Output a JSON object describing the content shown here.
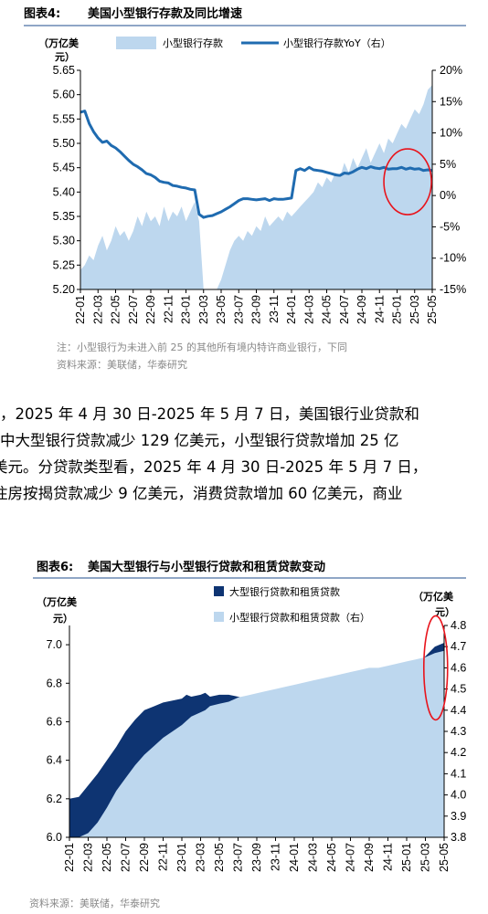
{
  "fig1": {
    "label": "图表4:",
    "title": "美国小型银行存款及同比增速",
    "note": "注：小型银行为未进入前 25 的其他所有境内特许商业银行，下同",
    "source": "资料来源：美联储，华泰研究",
    "colors": {
      "area": "#bdd7ee",
      "line": "#1f6bb0",
      "circle": "#e8141c"
    }
  },
  "fig2": {
    "label": "图表6:",
    "title": "美国大型银行与小型银行贷款和租赁贷款变动",
    "source": "资料来源：美联储，华泰研究",
    "colors": {
      "large": "#0e3472",
      "small": "#bdd7ee",
      "circle": "#e8141c"
    }
  },
  "body_text": [
    "，2025 年 4 月 30 日-2025 年 5 月 7 日，美国银行业贷款和",
    "中大型银行贷款减少 129 亿美元，小型银行贷款增加 25 亿",
    "美元。分贷款类型看，2025 年 4 月 30 日-2025 年 5 月 7 日，",
    "住房按揭贷款减少 9 亿美元，消费贷款增加 60 亿美元，商业"
  ],
  "chart_data": [
    {
      "type": "area",
      "title": "美国小型银行存款及同比增速",
      "y_unit_left": "（万亿美元）",
      "ylim_left": [
        5.2,
        5.65
      ],
      "ylim_right": [
        -15,
        20
      ],
      "y_ticks_left": [
        "5.20",
        "5.25",
        "5.30",
        "5.35",
        "5.40",
        "5.45",
        "5.50",
        "5.55",
        "5.60",
        "5.65"
      ],
      "y_ticks_right": [
        "-15%",
        "-10%",
        "-5%",
        "0%",
        "5%",
        "10%",
        "15%",
        "20%"
      ],
      "x_ticks": [
        "22-01",
        "22-03",
        "22-05",
        "22-07",
        "22-09",
        "22-11",
        "23-01",
        "23-03",
        "23-05",
        "23-07",
        "23-09",
        "23-11",
        "24-01",
        "24-03",
        "24-05",
        "24-07",
        "24-09",
        "24-11",
        "25-01",
        "25-03",
        "25-05"
      ],
      "legend_position": "top",
      "series": [
        {
          "name": "小型银行存款",
          "axis": "left",
          "kind": "area",
          "x": [
            0,
            0.5,
            1,
            1.5,
            2,
            2.5,
            3,
            3.5,
            4,
            4.5,
            5,
            5.5,
            6,
            6.5,
            7,
            7.5,
            8,
            8.5,
            9,
            9.5,
            10,
            10.5,
            11,
            11.5,
            12,
            12.5,
            13,
            13.5,
            14,
            14.5,
            15,
            15.5,
            16,
            16.5,
            17,
            17.5,
            18,
            18.5,
            19,
            19.5,
            20,
            20.5,
            21,
            21.5,
            22,
            22.5,
            23,
            23.5,
            24,
            24.5,
            25,
            25.5,
            26,
            26.5,
            27,
            27.5,
            28,
            28.5,
            29,
            29.5,
            30,
            30.5,
            31,
            31.5,
            32,
            32.5,
            33,
            33.5,
            34,
            34.5,
            35,
            35.5,
            36,
            36.5,
            37,
            37.5,
            38,
            38.5,
            39,
            39.5,
            40
          ],
          "values": [
            5.24,
            5.25,
            5.27,
            5.26,
            5.29,
            5.31,
            5.28,
            5.3,
            5.33,
            5.31,
            5.32,
            5.3,
            5.32,
            5.35,
            5.33,
            5.36,
            5.34,
            5.35,
            5.33,
            5.37,
            5.34,
            5.36,
            5.35,
            5.37,
            5.34,
            5.36,
            5.38,
            5.34,
            5.2,
            5.18,
            5.15,
            5.18,
            5.22,
            5.25,
            5.28,
            5.3,
            5.31,
            5.3,
            5.32,
            5.31,
            5.33,
            5.32,
            5.35,
            5.33,
            5.34,
            5.35,
            5.34,
            5.36,
            5.35,
            5.36,
            5.37,
            5.38,
            5.39,
            5.4,
            5.42,
            5.41,
            5.43,
            5.42,
            5.44,
            5.43,
            5.46,
            5.44,
            5.47,
            5.45,
            5.47,
            5.49,
            5.46,
            5.48,
            5.5,
            5.48,
            5.51,
            5.5,
            5.52,
            5.54,
            5.53,
            5.55,
            5.57,
            5.56,
            5.58,
            5.61,
            5.62
          ]
        },
        {
          "name": "小型银行存款YoY（右）",
          "axis": "right",
          "kind": "line",
          "x": [
            0,
            0.5,
            1,
            1.5,
            2,
            2.5,
            3,
            3.5,
            4,
            4.5,
            5,
            5.5,
            6,
            6.5,
            7,
            7.5,
            8,
            8.5,
            9,
            9.5,
            10,
            10.5,
            11,
            11.5,
            12,
            12.5,
            13,
            13.5,
            14,
            14.5,
            15,
            15.5,
            16,
            16.5,
            17,
            17.5,
            18,
            18.5,
            19,
            19.5,
            20,
            20.5,
            21,
            21.5,
            22,
            22.5,
            23,
            23.5,
            24,
            24.5,
            25,
            25.5,
            26,
            26.5,
            27,
            27.5,
            28,
            28.5,
            29,
            29.5,
            30,
            30.5,
            31,
            31.5,
            32,
            32.5,
            33,
            33.5,
            34,
            34.5,
            35,
            35.5,
            36,
            36.5,
            37,
            37.5,
            38,
            38.5,
            39,
            39.5,
            40
          ],
          "values": [
            13.3,
            13.5,
            11.5,
            10.2,
            9.2,
            8.5,
            8.7,
            8.0,
            7.6,
            7.0,
            6.3,
            5.6,
            5.0,
            4.6,
            4.1,
            3.5,
            3.3,
            2.9,
            2.3,
            2.1,
            2.0,
            1.6,
            1.5,
            1.3,
            1.2,
            1.0,
            0.9,
            -3.0,
            -3.5,
            -3.3,
            -3.2,
            -2.9,
            -2.6,
            -2.2,
            -1.8,
            -1.3,
            -0.8,
            -0.5,
            -0.5,
            -0.6,
            -0.7,
            -0.6,
            -0.5,
            -0.8,
            -0.5,
            -0.6,
            -0.6,
            -0.5,
            -0.4,
            4.0,
            4.3,
            4.0,
            4.5,
            4.1,
            4.0,
            3.9,
            3.7,
            3.5,
            3.3,
            3.2,
            3.6,
            3.5,
            3.8,
            4.2,
            4.5,
            4.3,
            4.6,
            4.4,
            4.3,
            4.5,
            4.2,
            4.3,
            4.3,
            4.5,
            4.2,
            4.4,
            4.2,
            4.3,
            4.0,
            4.1,
            4.0
          ]
        }
      ]
    },
    {
      "type": "area",
      "title": "美国大型银行与小型银行贷款和租赁贷款变动",
      "y_unit_left": "（万亿美元）",
      "y_unit_right": "（万亿美元）",
      "ylim_left": [
        6.0,
        7.1
      ],
      "ylim_right": [
        3.8,
        4.8
      ],
      "y_ticks_left": [
        "6.0",
        "6.2",
        "6.4",
        "6.6",
        "6.8",
        "7.0"
      ],
      "y_ticks_right": [
        "3.8",
        "3.9",
        "4.0",
        "4.1",
        "4.2",
        "4.3",
        "4.4",
        "4.5",
        "4.6",
        "4.7",
        "4.8"
      ],
      "x_ticks": [
        "22-01",
        "22-03",
        "22-05",
        "22-07",
        "22-09",
        "22-11",
        "23-01",
        "23-03",
        "23-05",
        "23-07",
        "23-09",
        "23-11",
        "24-01",
        "24-03",
        "24-05",
        "24-07",
        "24-09",
        "24-11",
        "25-01",
        "25-03",
        "25-05"
      ],
      "legend_position": "top",
      "series": [
        {
          "name": "大型银行贷款和租赁贷款",
          "axis": "left",
          "kind": "area",
          "x": [
            0,
            1,
            2,
            3,
            4,
            5,
            6,
            7,
            8,
            9,
            10,
            11,
            12,
            12.5,
            13,
            14,
            14.5,
            15,
            16,
            17,
            18,
            19,
            20,
            21,
            22,
            23,
            24,
            25,
            26,
            27,
            28,
            29,
            30,
            31,
            32,
            33,
            34,
            35,
            36,
            37,
            38,
            39,
            40
          ],
          "values": [
            6.2,
            6.21,
            6.27,
            6.33,
            6.4,
            6.47,
            6.55,
            6.61,
            6.66,
            6.68,
            6.7,
            6.71,
            6.72,
            6.74,
            6.73,
            6.74,
            6.75,
            6.73,
            6.74,
            6.74,
            6.73,
            6.72,
            6.73,
            6.74,
            6.72,
            6.71,
            6.72,
            6.71,
            6.72,
            6.71,
            6.73,
            6.74,
            6.75,
            6.77,
            6.78,
            6.8,
            6.84,
            6.87,
            6.86,
            6.89,
            6.94,
            6.99,
            7.01
          ]
        },
        {
          "name": "小型银行贷款和租赁贷款（右）",
          "axis": "right",
          "kind": "area",
          "x": [
            0,
            1,
            2,
            3,
            4,
            5,
            6,
            7,
            8,
            9,
            10,
            11,
            12,
            12.5,
            13,
            14,
            14.5,
            15,
            16,
            17,
            18,
            19,
            20,
            21,
            22,
            23,
            24,
            25,
            26,
            27,
            28,
            29,
            30,
            31,
            32,
            33,
            34,
            35,
            36,
            37,
            38,
            39,
            40
          ],
          "values": [
            3.73,
            3.77,
            3.82,
            3.87,
            3.94,
            4.02,
            4.08,
            4.14,
            4.19,
            4.23,
            4.27,
            4.3,
            4.33,
            4.35,
            4.37,
            4.39,
            4.4,
            4.42,
            4.43,
            4.44,
            4.46,
            4.47,
            4.48,
            4.49,
            4.5,
            4.51,
            4.52,
            4.53,
            4.54,
            4.55,
            4.56,
            4.57,
            4.58,
            4.59,
            4.6,
            4.6,
            4.61,
            4.62,
            4.63,
            4.64,
            4.65,
            4.67,
            4.68
          ]
        }
      ]
    }
  ]
}
